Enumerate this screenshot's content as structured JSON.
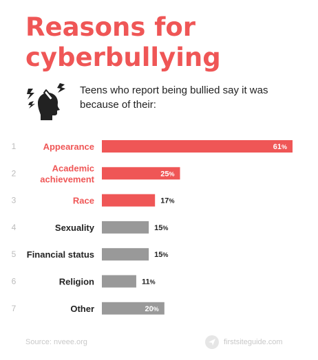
{
  "title": {
    "line1": "Reasons for",
    "line2": "cyberbullying"
  },
  "subtitle": "Teens who report being bullied say it was because of their:",
  "icon": "stressed-head-icon",
  "colors": {
    "accent": "#ef5656",
    "neutral": "#999999",
    "rank": "#bbbbbb",
    "footer": "#c8c8c8"
  },
  "chart_data": {
    "type": "bar",
    "orientation": "horizontal",
    "categories": [
      "Appearance",
      "Academic achievement",
      "Race",
      "Sexuality",
      "Financial status",
      "Religion",
      "Other"
    ],
    "ranks": [
      "1",
      "2",
      "3",
      "4",
      "5",
      "6",
      "7"
    ],
    "values": [
      61,
      25,
      17,
      15,
      15,
      11,
      20
    ],
    "highlighted": [
      true,
      true,
      true,
      false,
      false,
      false,
      false
    ],
    "value_suffix": "%",
    "xlim": [
      0,
      61
    ],
    "grid": false,
    "legend": "none"
  },
  "footer": {
    "source": "Source: nveee.org",
    "brand": "firstsiteguide.com",
    "brand_icon": "paper-plane-icon"
  }
}
